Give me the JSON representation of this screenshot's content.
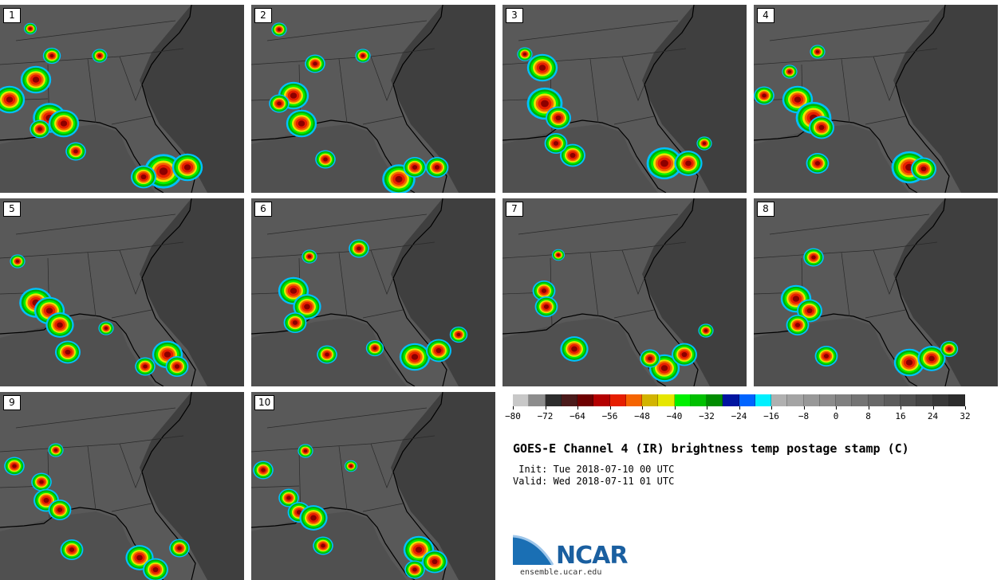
{
  "panels": [
    {
      "label": "1"
    },
    {
      "label": "2"
    },
    {
      "label": "3"
    },
    {
      "label": "4"
    },
    {
      "label": "5"
    },
    {
      "label": "6"
    },
    {
      "label": "7"
    },
    {
      "label": "8"
    },
    {
      "label": "9"
    },
    {
      "label": "10"
    }
  ],
  "colorbar": {
    "colors": [
      "#c8c8c8",
      "#8c8c8c",
      "#2d2d2d",
      "#4a1a1a",
      "#6e0000",
      "#b40000",
      "#e61e00",
      "#f56400",
      "#d2b400",
      "#e6e600",
      "#00f000",
      "#00c000",
      "#008c00",
      "#0014a0",
      "#0064ff",
      "#00f0ff",
      "#b0b0b0",
      "#a4a4a4",
      "#989898",
      "#8c8c8c",
      "#808080",
      "#747474",
      "#686868",
      "#5c5c5c",
      "#505050",
      "#444444",
      "#383838",
      "#2c2c2c"
    ],
    "labels": [
      "-80",
      "-72",
      "-64",
      "-56",
      "-48",
      "-40",
      "-32",
      "-24",
      "-16",
      "-8",
      "0",
      "8",
      "16",
      "24",
      "32"
    ]
  },
  "title": "GOES-E Channel 4 (IR) brightness temp postage stamp (C)",
  "init": " Init: Tue 2018-07-10 00 UTC",
  "valid": "Valid: Wed 2018-07-11 01 UTC",
  "logo": {
    "name": "NCAR",
    "url": "ensemble.ucar.edu",
    "brand_color": "#1a5fa0"
  }
}
